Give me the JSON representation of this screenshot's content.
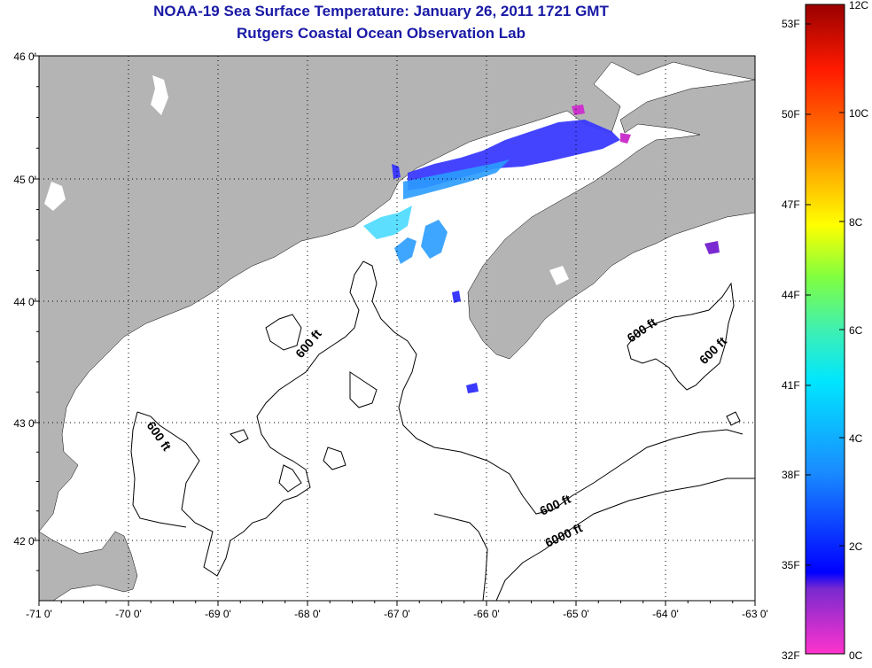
{
  "title_line1": "NOAA-19 Sea Surface Temperature:  January 26, 2011 1721 GMT",
  "title_line2": "Rutgers Coastal Ocean Observation Lab",
  "lon_ticks": [
    "-71 0'",
    "-70 0'",
    "-69 0'",
    "-68 0'",
    "-67 0'",
    "-66 0'",
    "-65 0'",
    "-64 0'",
    "-63 0'"
  ],
  "lat_ticks": [
    "46 0'",
    "45 0'",
    "44 0'",
    "43 0'",
    "42 0'"
  ],
  "contour_labels": [
    "600 ft",
    "600 ft",
    "600 ft",
    "600 ft",
    "600 ft",
    "6000 ft"
  ],
  "colorbar": {
    "fahrenheit": [
      "53F",
      "50F",
      "47F",
      "44F",
      "41F",
      "38F",
      "35F",
      "32F"
    ],
    "celsius": [
      "12C",
      "10C",
      "8C",
      "6C",
      "4C",
      "2C",
      "0C"
    ]
  },
  "colors": {
    "land": "#b4b4b4",
    "ocean": "#ffffff",
    "title": "#1a1aa6",
    "sst_cold": "#3a3aff",
    "sst_mid": "#2a9cff",
    "sst_warm": "#40d8ff"
  }
}
